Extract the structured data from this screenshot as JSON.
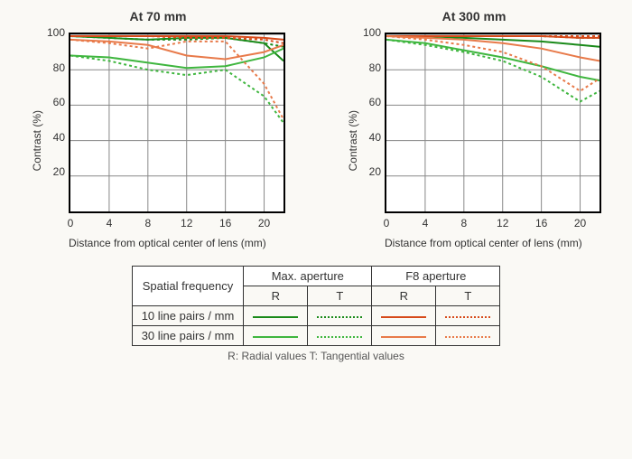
{
  "background_color": "#faf9f5",
  "charts": [
    {
      "title": "At 70 mm",
      "xlabel": "Distance from optical center of lens (mm)",
      "ylabel": "Contrast (%)",
      "xlim": [
        0,
        22
      ],
      "ylim": [
        0,
        100
      ],
      "xticks": [
        0,
        4,
        8,
        12,
        16,
        20
      ],
      "yticks": [
        20,
        40,
        60,
        80,
        100
      ],
      "grid_color": "#888",
      "series": [
        {
          "name": "10lp R max",
          "color": "#1a8a1a",
          "style": "solid",
          "width": 2,
          "x": [
            0,
            4,
            8,
            12,
            16,
            20,
            22
          ],
          "y": [
            99,
            98,
            97,
            98,
            98,
            95,
            85
          ]
        },
        {
          "name": "10lp T max",
          "color": "#1a8a1a",
          "style": "dotted",
          "width": 2,
          "x": [
            0,
            4,
            8,
            12,
            16,
            20,
            22
          ],
          "y": [
            99,
            98,
            97,
            97,
            98,
            95,
            93
          ]
        },
        {
          "name": "10lp R f8",
          "color": "#d64a1a",
          "style": "solid",
          "width": 2,
          "x": [
            0,
            4,
            8,
            12,
            16,
            20,
            22
          ],
          "y": [
            99,
            99,
            99,
            99,
            99,
            98,
            97
          ]
        },
        {
          "name": "10lp T f8",
          "color": "#d64a1a",
          "style": "dotted",
          "width": 2,
          "x": [
            0,
            4,
            8,
            12,
            16,
            20,
            22
          ],
          "y": [
            99,
            99,
            99,
            98,
            98,
            97,
            95
          ]
        },
        {
          "name": "30lp R max",
          "color": "#3fb63f",
          "style": "solid",
          "width": 2,
          "x": [
            0,
            4,
            8,
            12,
            16,
            20,
            22
          ],
          "y": [
            88,
            87,
            84,
            81,
            82,
            87,
            92
          ]
        },
        {
          "name": "30lp T max",
          "color": "#3fb63f",
          "style": "dotted",
          "width": 2,
          "x": [
            0,
            4,
            8,
            12,
            16,
            20,
            22
          ],
          "y": [
            88,
            85,
            80,
            77,
            80,
            65,
            50
          ]
        },
        {
          "name": "30lp R f8",
          "color": "#e87a4a",
          "style": "solid",
          "width": 2,
          "x": [
            0,
            4,
            8,
            12,
            16,
            20,
            22
          ],
          "y": [
            97,
            96,
            94,
            88,
            86,
            90,
            94
          ]
        },
        {
          "name": "30lp T f8",
          "color": "#e87a4a",
          "style": "dotted",
          "width": 2,
          "x": [
            0,
            4,
            8,
            12,
            16,
            20,
            22
          ],
          "y": [
            97,
            95,
            92,
            96,
            96,
            72,
            52
          ]
        }
      ]
    },
    {
      "title": "At 300 mm",
      "xlabel": "Distance from optical center of lens (mm)",
      "ylabel": "Contrast (%)",
      "xlim": [
        0,
        22
      ],
      "ylim": [
        0,
        100
      ],
      "xticks": [
        0,
        4,
        8,
        12,
        16,
        20
      ],
      "yticks": [
        20,
        40,
        60,
        80,
        100
      ],
      "grid_color": "#888",
      "series": [
        {
          "name": "10lp R max",
          "color": "#1a8a1a",
          "style": "solid",
          "width": 2,
          "x": [
            0,
            4,
            8,
            12,
            16,
            20,
            22
          ],
          "y": [
            99,
            99,
            98,
            97,
            96,
            94,
            93
          ]
        },
        {
          "name": "10lp T max",
          "color": "#1a8a1a",
          "style": "dotted",
          "width": 2,
          "x": [
            0,
            4,
            8,
            12,
            16,
            20,
            22
          ],
          "y": [
            99,
            99,
            99,
            99,
            99,
            98,
            98
          ]
        },
        {
          "name": "10lp R f8",
          "color": "#d64a1a",
          "style": "solid",
          "width": 2,
          "x": [
            0,
            4,
            8,
            12,
            16,
            20,
            22
          ],
          "y": [
            99,
            99,
            99,
            99,
            99,
            98,
            98
          ]
        },
        {
          "name": "10lp T f8",
          "color": "#d64a1a",
          "style": "dotted",
          "width": 2,
          "x": [
            0,
            4,
            8,
            12,
            16,
            20,
            22
          ],
          "y": [
            99,
            99,
            99,
            99,
            99,
            99,
            99
          ]
        },
        {
          "name": "30lp R max",
          "color": "#3fb63f",
          "style": "solid",
          "width": 2,
          "x": [
            0,
            4,
            8,
            12,
            16,
            20,
            22
          ],
          "y": [
            97,
            95,
            91,
            87,
            82,
            76,
            74
          ]
        },
        {
          "name": "30lp T max",
          "color": "#3fb63f",
          "style": "dotted",
          "width": 2,
          "x": [
            0,
            4,
            8,
            12,
            16,
            20,
            22
          ],
          "y": [
            97,
            94,
            90,
            85,
            76,
            62,
            68
          ]
        },
        {
          "name": "30lp R f8",
          "color": "#e87a4a",
          "style": "solid",
          "width": 2,
          "x": [
            0,
            4,
            8,
            12,
            16,
            20,
            22
          ],
          "y": [
            99,
            98,
            97,
            95,
            92,
            87,
            85
          ]
        },
        {
          "name": "30lp T f8",
          "color": "#e87a4a",
          "style": "dotted",
          "width": 2,
          "x": [
            0,
            4,
            8,
            12,
            16,
            20,
            22
          ],
          "y": [
            99,
            97,
            94,
            90,
            82,
            68,
            75
          ]
        }
      ]
    }
  ],
  "legend": {
    "header_col1": "Spatial frequency",
    "header_maxap": "Max. aperture",
    "header_f8": "F8 aperture",
    "header_r": "R",
    "header_t": "T",
    "row1_label": "10 line pairs / mm",
    "row2_label": "30 line pairs / mm",
    "colors": {
      "r1_max_r": "#1a8a1a",
      "r1_max_t": "#1a8a1a",
      "r1_f8_r": "#d64a1a",
      "r1_f8_t": "#d64a1a",
      "r2_max_r": "#3fb63f",
      "r2_max_t": "#3fb63f",
      "r2_f8_r": "#e87a4a",
      "r2_f8_t": "#e87a4a"
    }
  },
  "footnote": "R: Radial values  T: Tangential values"
}
